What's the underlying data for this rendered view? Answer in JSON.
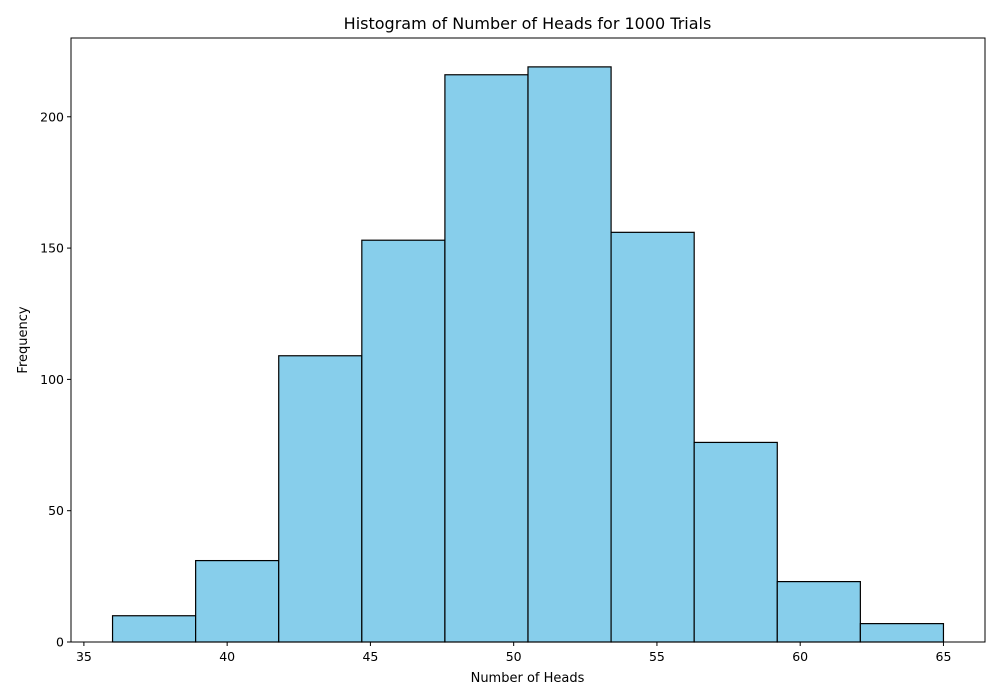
{
  "chart_data": {
    "type": "bar",
    "subtype": "histogram",
    "title": "Histogram of Number of Heads for 1000 Trials",
    "xlabel": "Number of Heads",
    "ylabel": "Frequency",
    "bins": [
      {
        "x0": 36.0,
        "x1": 38.9,
        "value": 10
      },
      {
        "x0": 38.9,
        "x1": 41.8,
        "value": 31
      },
      {
        "x0": 41.8,
        "x1": 44.7,
        "value": 109
      },
      {
        "x0": 44.7,
        "x1": 47.6,
        "value": 153
      },
      {
        "x0": 47.6,
        "x1": 50.5,
        "value": 216
      },
      {
        "x0": 50.5,
        "x1": 53.4,
        "value": 219
      },
      {
        "x0": 53.4,
        "x1": 56.3,
        "value": 156
      },
      {
        "x0": 56.3,
        "x1": 59.2,
        "value": 76
      },
      {
        "x0": 59.2,
        "x1": 62.1,
        "value": 23
      },
      {
        "x0": 62.1,
        "x1": 65.0,
        "value": 7
      }
    ],
    "xlim": [
      34.55,
      66.45
    ],
    "ylim": [
      0,
      230
    ],
    "xticks": [
      35,
      40,
      45,
      50,
      55,
      60,
      65
    ],
    "yticks": [
      0,
      50,
      100,
      150,
      200
    ],
    "grid": false,
    "bar_color": "#87ceeb",
    "edge_color": "#000000"
  }
}
